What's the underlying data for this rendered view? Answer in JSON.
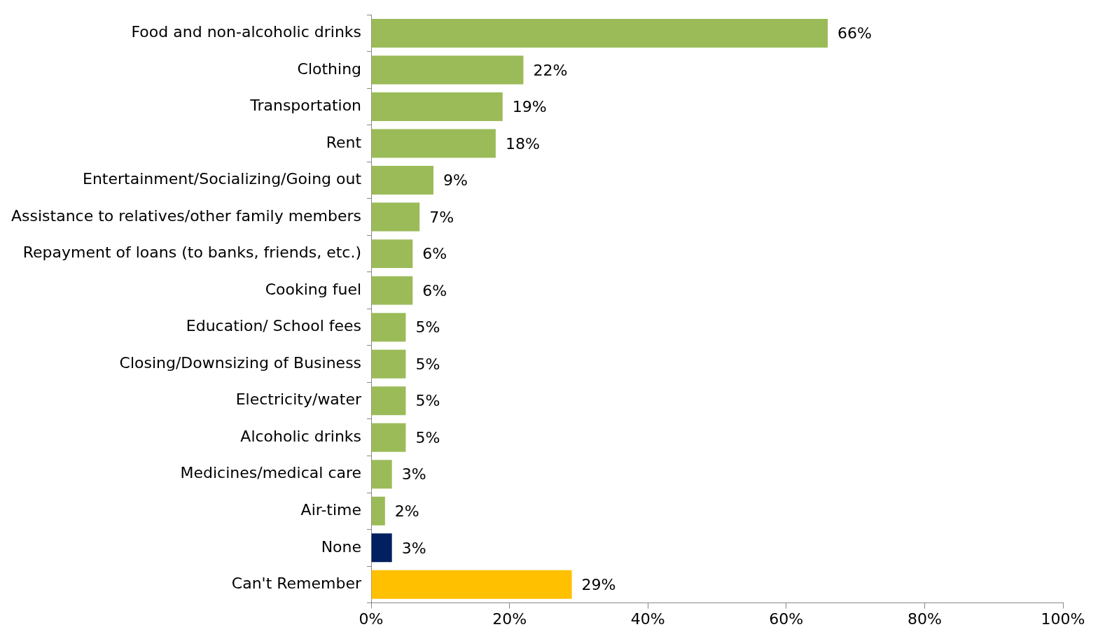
{
  "chart_data": {
    "type": "bar",
    "orientation": "horizontal",
    "categories": [
      "Food and non-alcoholic drinks",
      "Clothing",
      "Transportation",
      "Rent",
      "Entertainment/Socializing/Going out",
      "Assistance to relatives/other family members",
      "Repayment of loans (to banks, friends, etc.)",
      "Cooking fuel",
      "Education/ School fees",
      "Closing/Downsizing of Business",
      "Electricity/water",
      "Alcoholic drinks",
      "Medicines/medical care",
      "Air-time",
      "None",
      "Can't Remember"
    ],
    "values": [
      66,
      22,
      19,
      18,
      9,
      7,
      6,
      6,
      5,
      5,
      5,
      5,
      3,
      2,
      3,
      29
    ],
    "colors": [
      "#9bbb59",
      "#9bbb59",
      "#9bbb59",
      "#9bbb59",
      "#9bbb59",
      "#9bbb59",
      "#9bbb59",
      "#9bbb59",
      "#9bbb59",
      "#9bbb59",
      "#9bbb59",
      "#9bbb59",
      "#9bbb59",
      "#9bbb59",
      "#002060",
      "#ffc000"
    ],
    "value_labels": [
      "66%",
      "22%",
      "19%",
      "18%",
      "9%",
      "7%",
      "6%",
      "6%",
      "5%",
      "5%",
      "5%",
      "5%",
      "3%",
      "2%",
      "3%",
      "29%"
    ],
    "xlim": [
      0,
      100
    ],
    "xticks": [
      {
        "value": 0,
        "label": "0%"
      },
      {
        "value": 20,
        "label": "20%"
      },
      {
        "value": 40,
        "label": "40%"
      },
      {
        "value": 60,
        "label": "60%"
      },
      {
        "value": 80,
        "label": "80%"
      },
      {
        "value": 100,
        "label": "100%"
      }
    ],
    "grid": false,
    "legend": false
  }
}
